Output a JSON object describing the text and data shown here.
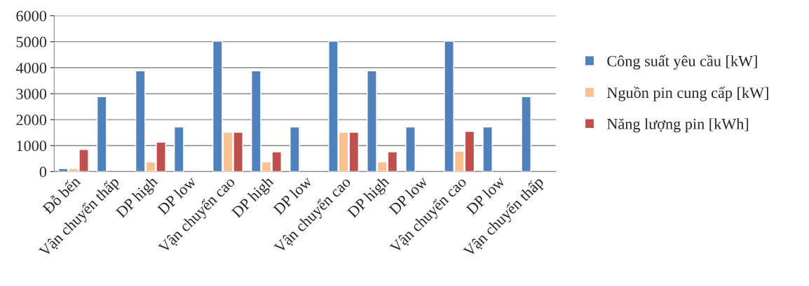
{
  "chart_data": {
    "type": "bar",
    "categories": [
      "Đỗ bến",
      "Vận chuyển thấp",
      "DP high",
      "DP low",
      "Vận chuyển cao",
      "DP high",
      "DP low",
      "Vận chuyển cao",
      "DP high",
      "DP low",
      "Vận chuyển cao",
      "DP low",
      "Vận chuyển thấp"
    ],
    "series": [
      {
        "name": "Công suất yêu cầu [kW]",
        "color": "#4f81bd",
        "values": [
          120,
          2880,
          3880,
          1720,
          5020,
          3880,
          1720,
          5020,
          3880,
          1720,
          5020,
          1720,
          2880
        ]
      },
      {
        "name": "Nguồn pin cung cấp [kW]",
        "color": "#fac090",
        "values": [
          120,
          null,
          370,
          null,
          1520,
          370,
          null,
          1520,
          370,
          null,
          780,
          null,
          null
        ]
      },
      {
        "name": "Năng lượng pin [kWh]",
        "color": "#c0504d",
        "values": [
          850,
          null,
          1130,
          null,
          1520,
          760,
          null,
          1520,
          760,
          null,
          1550,
          null,
          null
        ]
      }
    ],
    "ylim": [
      0,
      6000
    ],
    "yticks": [
      0,
      1000,
      2000,
      3000,
      4000,
      5000,
      6000
    ],
    "grid": "y",
    "legend": "right"
  }
}
